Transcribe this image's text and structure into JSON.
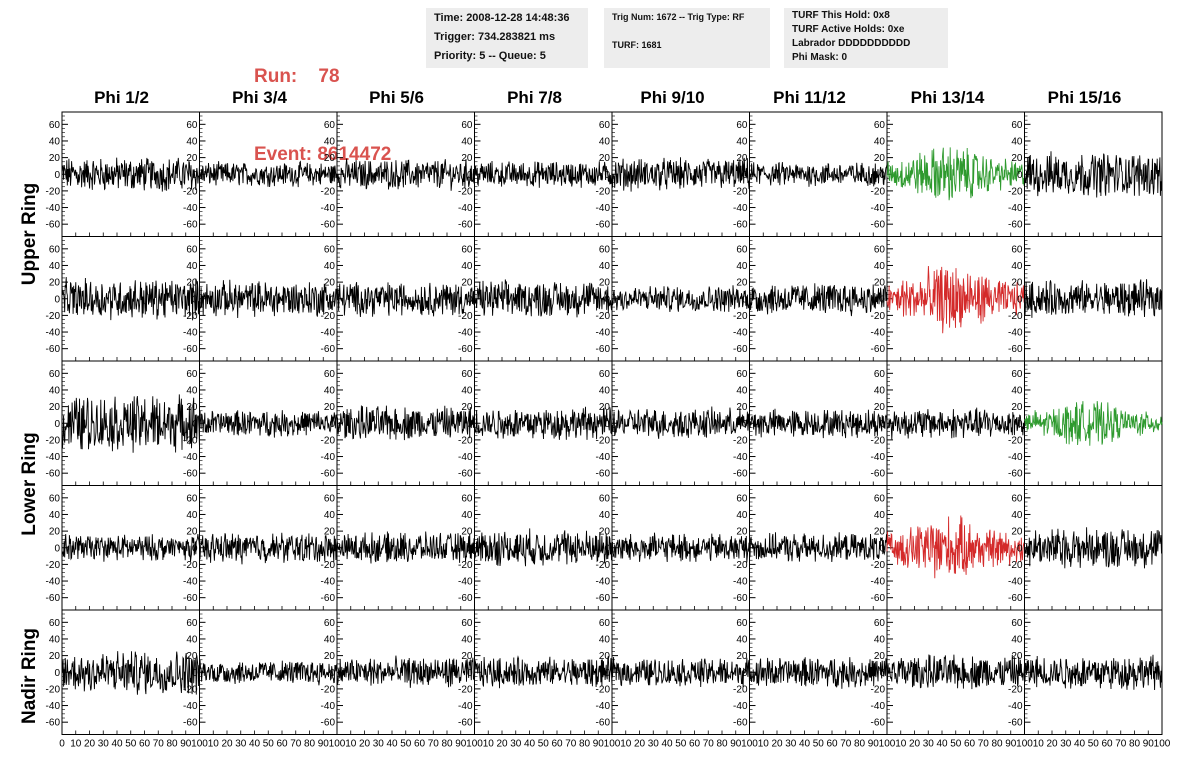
{
  "header": {
    "run_label": "Run:",
    "run_value": "78",
    "event_label": "Event:",
    "event_value": "8614472",
    "box1": [
      "Time: 2008-12-28 14:48:36",
      "Trigger: 734.283821 ms",
      "Priority: 5 -- Queue: 5"
    ],
    "box2": [
      "Trig Num: 1672 -- Trig Type: RF",
      "TURF: 1681"
    ],
    "box3": [
      "TURF This Hold: 0x8",
      "TURF Active Holds: 0xe",
      "Labrador DDDDDDDDDD",
      "Phi Mask: 0"
    ]
  },
  "colors": {
    "normal": "#000000",
    "green": "#2e9a2e",
    "red": "#d42a2a",
    "header_red": "#d9534f"
  },
  "chart_data": {
    "type": "line",
    "columns": [
      "Phi 1/2",
      "Phi 3/4",
      "Phi 5/6",
      "Phi 7/8",
      "Phi 9/10",
      "Phi 11/12",
      "Phi 13/14",
      "Phi 15/16"
    ],
    "ring_groups": [
      {
        "name": "Upper Ring",
        "rows": [
          0,
          1
        ]
      },
      {
        "name": "Lower Ring",
        "rows": [
          2,
          3
        ]
      },
      {
        "name": "Nadir Ring",
        "rows": [
          4
        ]
      }
    ],
    "ylim": [
      -70,
      70
    ],
    "y_ticks": [
      -60,
      -40,
      -20,
      0,
      20,
      40,
      60
    ],
    "x_ticks": [
      0,
      10,
      20,
      30,
      40,
      50,
      60,
      70,
      80,
      90,
      100
    ],
    "xlim": [
      0,
      100
    ],
    "highlight": [
      {
        "row": 0,
        "col": 6,
        "color": "green"
      },
      {
        "row": 1,
        "col": 6,
        "color": "red"
      },
      {
        "row": 2,
        "col": 7,
        "color": "green"
      },
      {
        "row": 3,
        "col": 6,
        "color": "red"
      }
    ],
    "amplitudes": [
      [
        17,
        12,
        15,
        13,
        16,
        12,
        22,
        22
      ],
      [
        20,
        18,
        17,
        18,
        13,
        16,
        26,
        18
      ],
      [
        28,
        13,
        17,
        16,
        15,
        14,
        15,
        17
      ],
      [
        13,
        15,
        15,
        18,
        14,
        14,
        24,
        20
      ],
      [
        22,
        12,
        15,
        15,
        14,
        15,
        17,
        17
      ]
    ]
  }
}
